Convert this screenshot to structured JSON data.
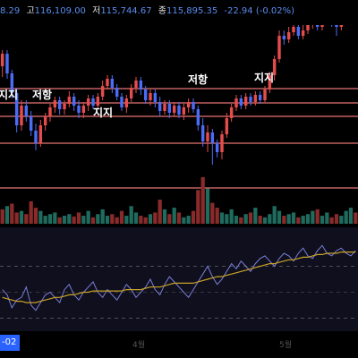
{
  "infobar": {
    "open_value": "8.29",
    "high_label": "고",
    "high_value": "116,109.00",
    "low_label": "저",
    "low_value": "115,744.67",
    "close_label": "종",
    "close_value": "115,895.35",
    "change_value": "-22.94 (-0.02%)"
  },
  "annotations": {
    "support_1": "지지",
    "resistance_1": "저항",
    "support_2": "지지",
    "resistance_2": "저항",
    "support_3": "지지"
  },
  "xaxis": {
    "date_tag": "-02",
    "tick_1": "4월",
    "tick_2": "5월"
  },
  "colors": {
    "up": "#e74c4c",
    "down": "#4a6cf7",
    "volume_up": "#8b2a2a",
    "volume_down": "#1f6b5e",
    "level_line": "#e57373",
    "rsi_line": "#7b7fd9",
    "rsi_ma": "#c9a227",
    "rsi_bg": "#0f0f1e"
  },
  "chart_data": {
    "type": "candlestick",
    "price_levels": [
      99,
      115,
      130,
      160
    ],
    "price_range": [
      190,
      0
    ],
    "candles": [
      [
        74,
        60,
        56,
        86
      ],
      [
        60,
        82,
        56,
        88
      ],
      [
        82,
        104,
        78,
        110
      ],
      [
        104,
        140,
        98,
        148
      ],
      [
        140,
        118,
        112,
        146
      ],
      [
        118,
        130,
        112,
        136
      ],
      [
        130,
        146,
        124,
        152
      ],
      [
        146,
        160,
        138,
        168
      ],
      [
        160,
        140,
        134,
        164
      ],
      [
        140,
        130,
        126,
        146
      ],
      [
        130,
        120,
        116,
        136
      ],
      [
        120,
        112,
        108,
        126
      ],
      [
        112,
        122,
        108,
        128
      ],
      [
        122,
        116,
        112,
        128
      ],
      [
        116,
        108,
        102,
        120
      ],
      [
        108,
        118,
        104,
        124
      ],
      [
        118,
        126,
        112,
        132
      ],
      [
        126,
        118,
        114,
        132
      ],
      [
        118,
        110,
        106,
        124
      ],
      [
        110,
        118,
        106,
        122
      ],
      [
        118,
        108,
        104,
        122
      ],
      [
        108,
        96,
        90,
        112
      ],
      [
        96,
        88,
        84,
        100
      ],
      [
        88,
        98,
        84,
        104
      ],
      [
        98,
        108,
        94,
        112
      ],
      [
        108,
        120,
        104,
        124
      ],
      [
        120,
        110,
        106,
        126
      ],
      [
        110,
        98,
        94,
        114
      ],
      [
        98,
        90,
        86,
        104
      ],
      [
        90,
        100,
        86,
        106
      ],
      [
        100,
        112,
        96,
        116
      ],
      [
        112,
        104,
        100,
        118
      ],
      [
        104,
        114,
        100,
        120
      ],
      [
        114,
        124,
        108,
        130
      ],
      [
        124,
        116,
        112,
        128
      ],
      [
        116,
        126,
        112,
        132
      ],
      [
        126,
        118,
        114,
        130
      ],
      [
        118,
        128,
        114,
        132
      ],
      [
        128,
        120,
        116,
        134
      ],
      [
        120,
        114,
        110,
        126
      ],
      [
        114,
        122,
        110,
        126
      ],
      [
        122,
        140,
        118,
        146
      ],
      [
        140,
        158,
        132,
        164
      ],
      [
        158,
        148,
        140,
        170
      ],
      [
        148,
        160,
        144,
        184
      ],
      [
        160,
        170,
        156,
        176
      ],
      [
        170,
        150,
        146,
        178
      ],
      [
        150,
        132,
        126,
        154
      ],
      [
        132,
        120,
        116,
        136
      ],
      [
        120,
        110,
        106,
        124
      ],
      [
        110,
        118,
        106,
        122
      ],
      [
        118,
        108,
        104,
        122
      ],
      [
        108,
        114,
        104,
        118
      ],
      [
        114,
        106,
        102,
        118
      ],
      [
        106,
        112,
        102,
        116
      ],
      [
        112,
        100,
        96,
        114
      ],
      [
        100,
        84,
        80,
        104
      ],
      [
        84,
        66,
        62,
        90
      ],
      [
        66,
        40,
        34,
        70
      ],
      [
        40,
        44,
        34,
        50
      ],
      [
        44,
        36,
        30,
        48
      ],
      [
        36,
        30,
        26,
        40
      ],
      [
        30,
        40,
        26,
        44
      ],
      [
        40,
        34,
        28,
        44
      ],
      [
        34,
        28,
        24,
        38
      ],
      [
        28,
        22,
        18,
        32
      ],
      [
        22,
        30,
        18,
        34
      ],
      [
        30,
        24,
        20,
        34
      ],
      [
        24,
        18,
        14,
        28
      ],
      [
        18,
        26,
        14,
        30
      ],
      [
        26,
        30,
        22,
        40
      ],
      [
        30,
        20,
        16,
        34
      ],
      [
        20,
        12,
        8,
        24
      ],
      [
        12,
        6,
        2,
        16
      ],
      [
        6,
        10,
        2,
        14
      ]
    ],
    "volume": [
      18,
      22,
      25,
      14,
      16,
      12,
      28,
      20,
      16,
      10,
      12,
      14,
      8,
      10,
      12,
      9,
      14,
      10,
      16,
      8,
      12,
      18,
      10,
      12,
      8,
      16,
      10,
      22,
      14,
      10,
      8,
      12,
      14,
      30,
      18,
      12,
      20,
      14,
      8,
      10,
      16,
      42,
      58,
      44,
      26,
      20,
      14,
      12,
      18,
      10,
      8,
      12,
      14,
      20,
      10,
      8,
      12,
      22,
      16,
      10,
      12,
      14,
      8,
      10,
      12,
      16,
      18,
      10,
      14,
      8,
      12,
      10,
      16,
      20,
      14
    ],
    "volume_up": [
      1,
      0,
      1,
      1,
      0,
      1,
      1,
      1,
      0,
      0,
      0,
      0,
      1,
      0,
      0,
      1,
      1,
      0,
      0,
      1,
      0,
      0,
      0,
      1,
      1,
      1,
      0,
      0,
      0,
      1,
      1,
      0,
      1,
      1,
      0,
      1,
      0,
      1,
      0,
      0,
      1,
      1,
      1,
      0,
      1,
      1,
      0,
      0,
      0,
      0,
      1,
      0,
      1,
      0,
      1,
      0,
      0,
      0,
      0,
      1,
      0,
      0,
      1,
      0,
      0,
      0,
      1,
      0,
      0,
      1,
      1,
      0,
      0,
      0,
      1
    ],
    "rsi": [
      52,
      48,
      38,
      44,
      46,
      54,
      40,
      36,
      42,
      48,
      50,
      46,
      42,
      52,
      56,
      48,
      44,
      50,
      54,
      58,
      50,
      46,
      52,
      48,
      44,
      50,
      56,
      52,
      46,
      50,
      54,
      60,
      52,
      48,
      56,
      62,
      58,
      54,
      50,
      46,
      52,
      58,
      64,
      70,
      62,
      56,
      60,
      66,
      72,
      68,
      74,
      70,
      66,
      72,
      76,
      78,
      74,
      70,
      76,
      80,
      78,
      74,
      80,
      84,
      78,
      76,
      82,
      86,
      80,
      78,
      82,
      84,
      80,
      78,
      82
    ],
    "rsi_ma": [
      46,
      45,
      44,
      43,
      43,
      42,
      42,
      42,
      43,
      44,
      45,
      46,
      46,
      47,
      48,
      48,
      49,
      50,
      50,
      51,
      51,
      51,
      51,
      51,
      51,
      51,
      52,
      52,
      52,
      52,
      53,
      54,
      54,
      54,
      55,
      56,
      57,
      57,
      57,
      57,
      57,
      58,
      59,
      60,
      61,
      62,
      62,
      63,
      64,
      65,
      66,
      67,
      68,
      69,
      70,
      71,
      72,
      72,
      73,
      74,
      75,
      75,
      76,
      77,
      77,
      78,
      79,
      79,
      80,
      80,
      80,
      81,
      81,
      81,
      81
    ],
    "rsi_range": [
      20,
      100
    ]
  }
}
